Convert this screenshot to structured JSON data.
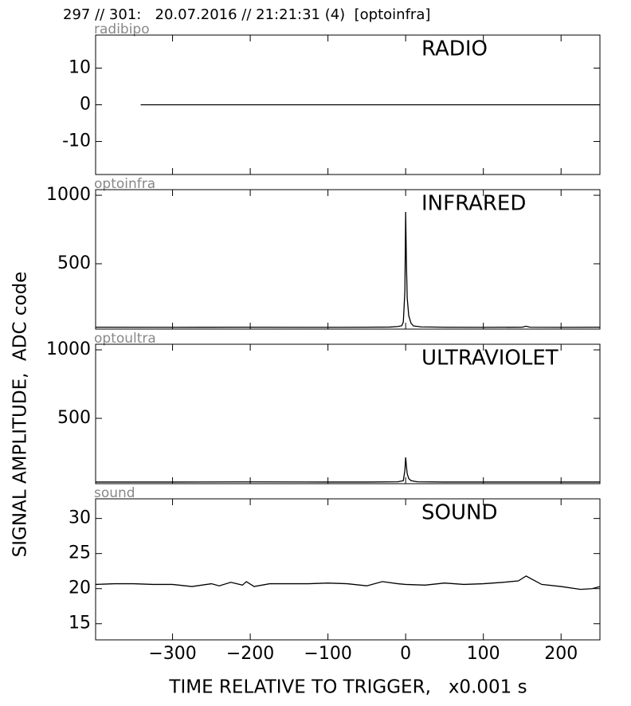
{
  "header": "297 // 301:   20.07.2016 // 21:21:31 (4)  [optoinfra]",
  "ylabel": "SIGNAL AMPLITUDE,  ADC code",
  "xlabel": "TIME RELATIVE TO TRIGGER,   x0.001 s",
  "chart_data": [
    {
      "type": "line",
      "channel": "radibipo",
      "title": "RADIO",
      "color": "#000000",
      "x": [
        -341,
        250
      ],
      "values": [
        0,
        0
      ],
      "xlim": [
        -399,
        250
      ],
      "ylim": [
        -19,
        19
      ],
      "yticks": [
        -10,
        0,
        10
      ]
    },
    {
      "type": "line",
      "channel": "optoinfra",
      "title": "INFRARED",
      "color": "#000000",
      "x": [
        -399,
        -300,
        -200,
        -100,
        -50,
        -20,
        -10,
        -5,
        -3,
        -1,
        0,
        1,
        2,
        4,
        7,
        10,
        20,
        50,
        100,
        150,
        155,
        160,
        200,
        250
      ],
      "values": [
        37,
        36,
        37,
        36,
        37,
        38,
        42,
        48,
        75,
        300,
        878,
        500,
        250,
        120,
        65,
        46,
        39,
        37,
        36,
        37,
        44,
        37,
        36,
        37
      ],
      "xlim": [
        -399,
        250
      ],
      "ylim": [
        23,
        1041
      ],
      "yticks": [
        500,
        1000
      ]
    },
    {
      "type": "line",
      "channel": "optoultra",
      "title": "ULTRAVIOLET",
      "color": "#000000",
      "x": [
        -399,
        -300,
        -200,
        -100,
        -50,
        -10,
        -3,
        -1,
        0,
        1,
        2,
        4,
        7,
        15,
        50,
        100,
        200,
        250
      ],
      "values": [
        35,
        35,
        36,
        35,
        35,
        37,
        45,
        120,
        215,
        150,
        95,
        60,
        45,
        37,
        35,
        35,
        35,
        35
      ],
      "xlim": [
        -399,
        250
      ],
      "ylim": [
        23,
        1041
      ],
      "yticks": [
        500,
        1000
      ]
    },
    {
      "type": "line",
      "channel": "sound",
      "title": "SOUND",
      "color": "#000000",
      "x": [
        -399,
        -375,
        -350,
        -325,
        -300,
        -275,
        -250,
        -240,
        -225,
        -210,
        -205,
        -195,
        -175,
        -150,
        -125,
        -100,
        -75,
        -50,
        -30,
        -10,
        0,
        25,
        50,
        75,
        100,
        125,
        145,
        155,
        165,
        175,
        200,
        225,
        240,
        250
      ],
      "values": [
        20.6,
        20.7,
        20.7,
        20.6,
        20.6,
        20.3,
        20.7,
        20.4,
        20.9,
        20.5,
        21.0,
        20.3,
        20.7,
        20.7,
        20.7,
        20.8,
        20.7,
        20.4,
        21.0,
        20.7,
        20.6,
        20.5,
        20.8,
        20.6,
        20.7,
        20.9,
        21.1,
        21.8,
        21.2,
        20.6,
        20.3,
        19.9,
        20.0,
        20.3
      ],
      "xlim": [
        -399,
        250
      ],
      "ylim": [
        12.7,
        32.8
      ],
      "yticks": [
        15,
        20,
        25,
        30
      ],
      "xticks": [
        {
          "value": -300,
          "label": "−300"
        },
        {
          "value": -200,
          "label": "−200"
        },
        {
          "value": -100,
          "label": "−100"
        },
        0,
        100,
        200
      ]
    }
  ]
}
